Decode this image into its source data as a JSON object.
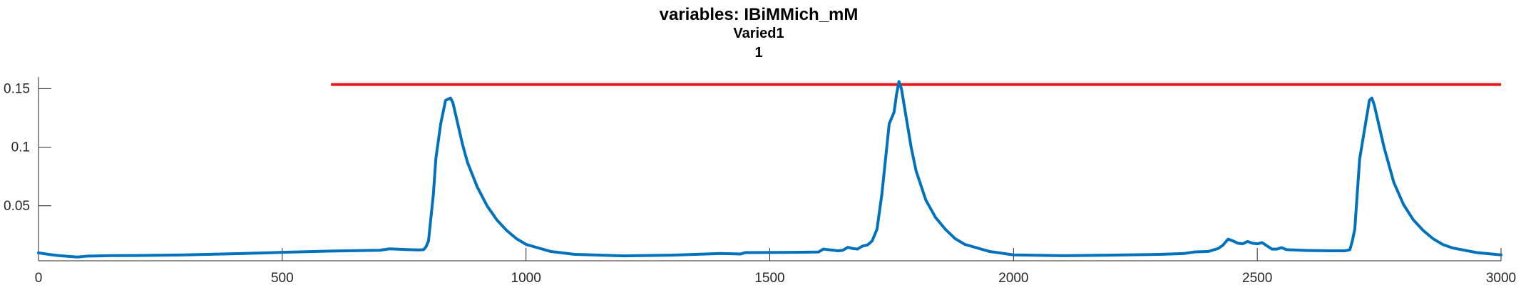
{
  "chart_data": {
    "type": "line",
    "title": "variables: IBiMMich_mM",
    "subtitle": "Varied1",
    "subtitle2": "1",
    "xlabel": "",
    "ylabel": "",
    "xlim": [
      0,
      3000
    ],
    "ylim": [
      0.003,
      0.16
    ],
    "xticks": [
      0,
      500,
      1000,
      1500,
      2000,
      2500,
      3000
    ],
    "xtick_labels": [
      "0",
      "500",
      "1000",
      "1500",
      "2000",
      "2500",
      "3000"
    ],
    "yticks": [
      0.05,
      0.1,
      0.15
    ],
    "ytick_labels": [
      "0.05",
      "0.1",
      "0.15"
    ],
    "grid": false,
    "colors": {
      "series": "#0072BD",
      "threshold": "#E41A1C"
    },
    "threshold": {
      "y": 0.1535,
      "x_start": 600,
      "x_end": 3000
    },
    "series": [
      {
        "x": [
          0,
          20,
          40,
          60,
          80,
          100,
          150,
          200,
          300,
          400,
          500,
          600,
          700,
          720,
          760,
          780,
          790,
          795,
          800,
          810,
          815,
          825,
          835,
          845,
          850,
          860,
          870,
          880,
          900,
          920,
          940,
          960,
          980,
          1000,
          1050,
          1100,
          1200,
          1300,
          1400,
          1440,
          1450,
          1500,
          1550,
          1600,
          1610,
          1640,
          1650,
          1660,
          1670,
          1680,
          1690,
          1700,
          1705,
          1710,
          1720,
          1730,
          1745,
          1755,
          1760,
          1765,
          1770,
          1780,
          1790,
          1800,
          1820,
          1840,
          1860,
          1880,
          1900,
          1950,
          2000,
          2100,
          2200,
          2300,
          2350,
          2370,
          2400,
          2420,
          2430,
          2440,
          2450,
          2460,
          2470,
          2480,
          2490,
          2500,
          2510,
          2530,
          2540,
          2550,
          2560,
          2600,
          2650,
          2680,
          2690,
          2695,
          2700,
          2710,
          2720,
          2730,
          2735,
          2740,
          2750,
          2760,
          2780,
          2800,
          2820,
          2840,
          2860,
          2880,
          2900,
          2950,
          3000
        ],
        "values": [
          0.0098,
          0.0085,
          0.0075,
          0.0068,
          0.0062,
          0.007,
          0.0074,
          0.0075,
          0.008,
          0.009,
          0.0102,
          0.0113,
          0.012,
          0.0132,
          0.0125,
          0.0123,
          0.0125,
          0.015,
          0.02,
          0.06,
          0.09,
          0.12,
          0.14,
          0.142,
          0.138,
          0.12,
          0.102,
          0.087,
          0.066,
          0.05,
          0.038,
          0.029,
          0.022,
          0.017,
          0.011,
          0.0085,
          0.0072,
          0.0078,
          0.0092,
          0.0088,
          0.01,
          0.0101,
          0.0102,
          0.0105,
          0.013,
          0.0115,
          0.012,
          0.0145,
          0.0135,
          0.013,
          0.0155,
          0.0165,
          0.018,
          0.02,
          0.03,
          0.06,
          0.12,
          0.13,
          0.145,
          0.156,
          0.15,
          0.125,
          0.1,
          0.08,
          0.055,
          0.04,
          0.03,
          0.022,
          0.017,
          0.011,
          0.008,
          0.0073,
          0.0078,
          0.0085,
          0.0092,
          0.0105,
          0.011,
          0.0135,
          0.0165,
          0.0215,
          0.02,
          0.018,
          0.0175,
          0.0195,
          0.018,
          0.0175,
          0.0185,
          0.013,
          0.013,
          0.0142,
          0.0125,
          0.0118,
          0.0115,
          0.0115,
          0.0125,
          0.02,
          0.03,
          0.09,
          0.115,
          0.14,
          0.142,
          0.136,
          0.118,
          0.1,
          0.07,
          0.051,
          0.038,
          0.029,
          0.022,
          0.017,
          0.014,
          0.01,
          0.008
        ]
      }
    ]
  }
}
